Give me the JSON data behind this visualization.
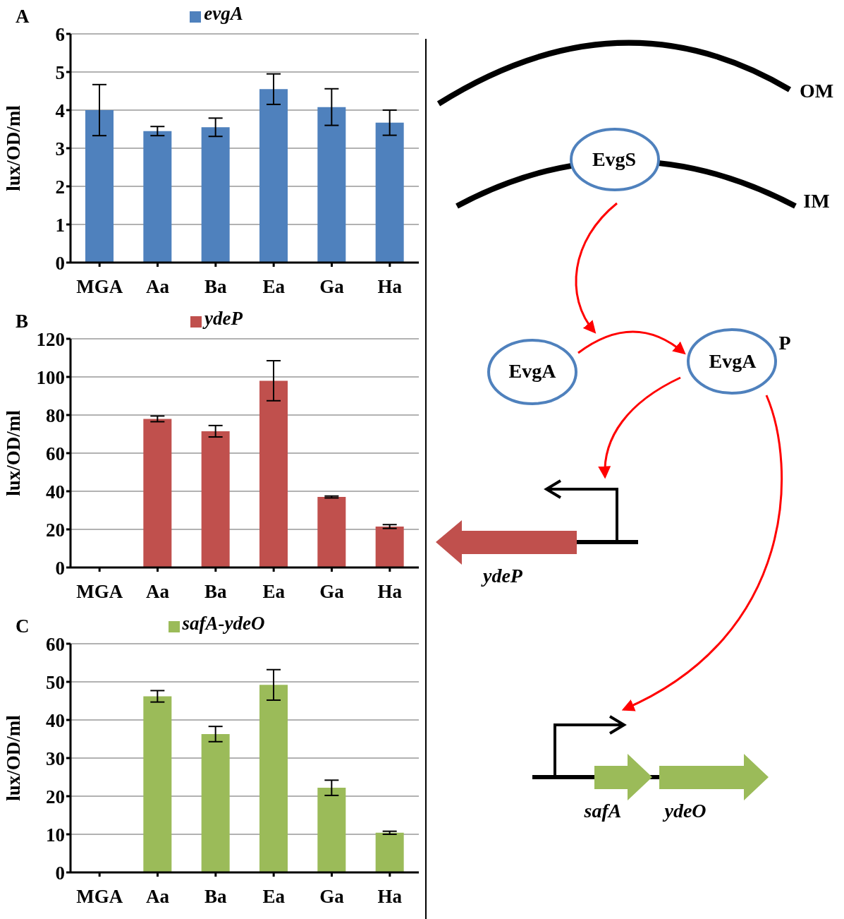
{
  "chart_data": [
    {
      "type": "bar",
      "categories": [
        "MGA",
        "Aa",
        "Ba",
        "Ea",
        "Ga",
        "Ha"
      ],
      "series": [
        {
          "name": "evgA",
          "color": "#4f81bd",
          "values": [
            4.0,
            3.45,
            3.55,
            4.55,
            4.08,
            3.67
          ],
          "errors": [
            0.67,
            0.12,
            0.24,
            0.4,
            0.48,
            0.33
          ]
        }
      ],
      "ylabel": "lux/OD/ml",
      "ylim": [
        0,
        6
      ],
      "yticks": [
        0,
        1,
        2,
        3,
        4,
        5,
        6
      ],
      "grid": "y",
      "legend": "top",
      "annotations": [
        "A"
      ]
    },
    {
      "type": "bar",
      "categories": [
        "MGA",
        "Aa",
        "Ba",
        "Ea",
        "Ga",
        "Ha"
      ],
      "series": [
        {
          "name": "ydeP",
          "color": "#c0504d",
          "values": [
            0,
            78,
            71.5,
            98,
            37,
            21.5
          ],
          "errors": [
            0,
            1.5,
            3,
            10.5,
            0.5,
            1
          ]
        }
      ],
      "ylabel": "lux/OD/ml",
      "ylim": [
        0,
        120
      ],
      "yticks": [
        0,
        20,
        40,
        60,
        80,
        100,
        120
      ],
      "grid": "y",
      "legend": "top",
      "annotations": [
        "B"
      ]
    },
    {
      "type": "bar",
      "categories": [
        "MGA",
        "Aa",
        "Ba",
        "Ea",
        "Ga",
        "Ha"
      ],
      "series": [
        {
          "name": "safA-ydeO",
          "color": "#9bbb59",
          "values": [
            0,
            46.2,
            36.3,
            49.2,
            22.2,
            10.4
          ],
          "errors": [
            0,
            1.5,
            2,
            4,
            2,
            0.4
          ]
        }
      ],
      "ylabel": "lux/OD/ml",
      "ylim": [
        0,
        60
      ],
      "yticks": [
        0,
        10,
        20,
        30,
        40,
        50,
        60
      ],
      "grid": "y",
      "legend": "top",
      "annotations": [
        "C"
      ]
    },
    {
      "type": "other",
      "annotations": [
        "OM",
        "IM",
        "EvgS",
        "EvgA",
        "EvgA",
        "P",
        "ydeP",
        "safA",
        "ydeO"
      ]
    }
  ]
}
